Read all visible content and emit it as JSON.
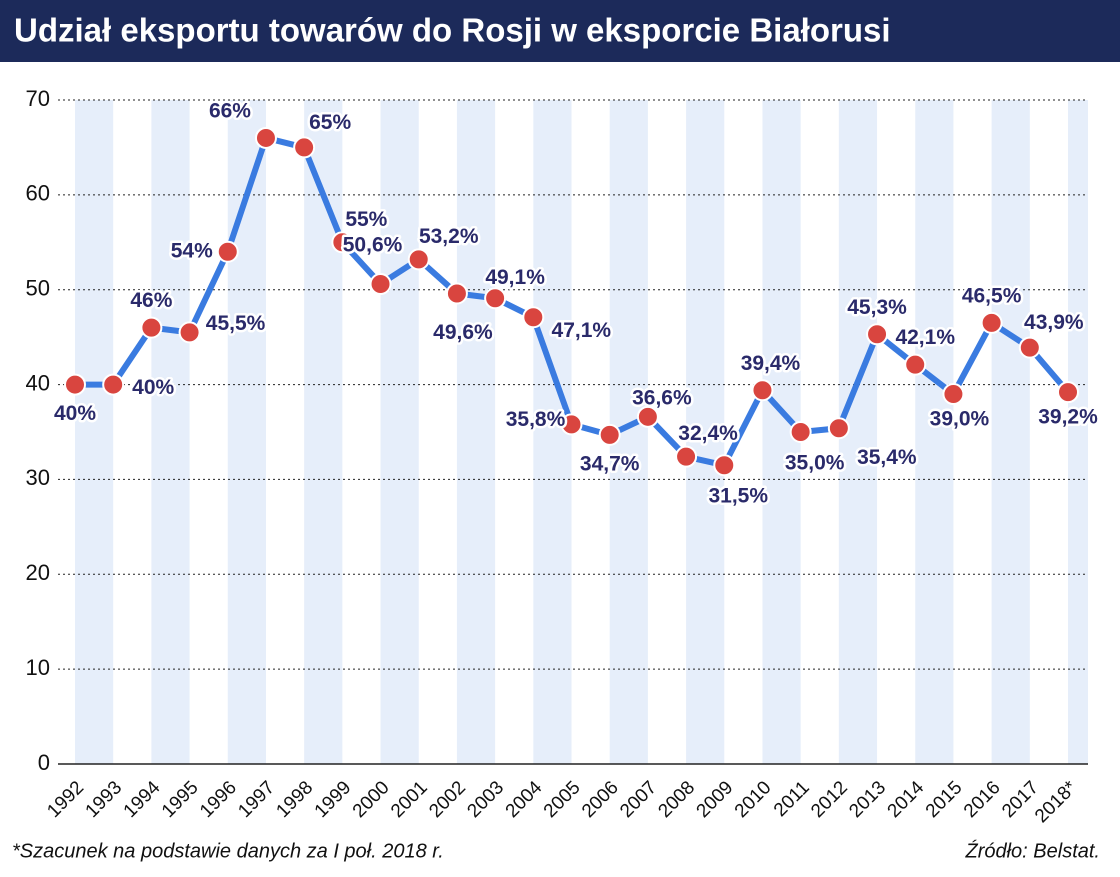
{
  "chart_data": {
    "type": "line",
    "title": "Udział eksportu towarów do Rosji w eksporcie Białorusi",
    "categories": [
      "1992",
      "1993",
      "1994",
      "1995",
      "1996",
      "1997",
      "1998",
      "1999",
      "2000",
      "2001",
      "2002",
      "2003",
      "2004",
      "2005",
      "2006",
      "2007",
      "2008",
      "2009",
      "2010",
      "2011",
      "2012",
      "2013",
      "2014",
      "2015",
      "2016",
      "2017",
      "2018*"
    ],
    "values": [
      40,
      40,
      46,
      45.5,
      54,
      66,
      65,
      55,
      50.6,
      53.2,
      49.6,
      49.1,
      47.1,
      35.8,
      34.7,
      36.6,
      32.4,
      31.5,
      39.4,
      35.0,
      35.4,
      45.3,
      42.1,
      39.0,
      46.5,
      43.9,
      39.2
    ],
    "value_labels": [
      "40%",
      "40%",
      "46%",
      "45,5%",
      "54%",
      "66%",
      "65%",
      "55%",
      "50,6%",
      "53,2%",
      "49,6%",
      "49,1%",
      "47,1%",
      "35,8%",
      "34,7%",
      "36,6%",
      "32,4%",
      "31,5%",
      "39,4%",
      "35,0%",
      "35,4%",
      "45,3%",
      "42,1%",
      "39,0%",
      "46,5%",
      "43,9%",
      "39,2%"
    ],
    "color": "#3a7be0",
    "marker_color": "#d9453f",
    "ylim": [
      0,
      70
    ],
    "yticks": [
      0,
      10,
      20,
      30,
      40,
      50,
      60,
      70
    ],
    "grid": true,
    "footnote": "*Szacunek na podstawie danych za I poł. 2018 r.",
    "source": "Źródło: Belstat."
  }
}
